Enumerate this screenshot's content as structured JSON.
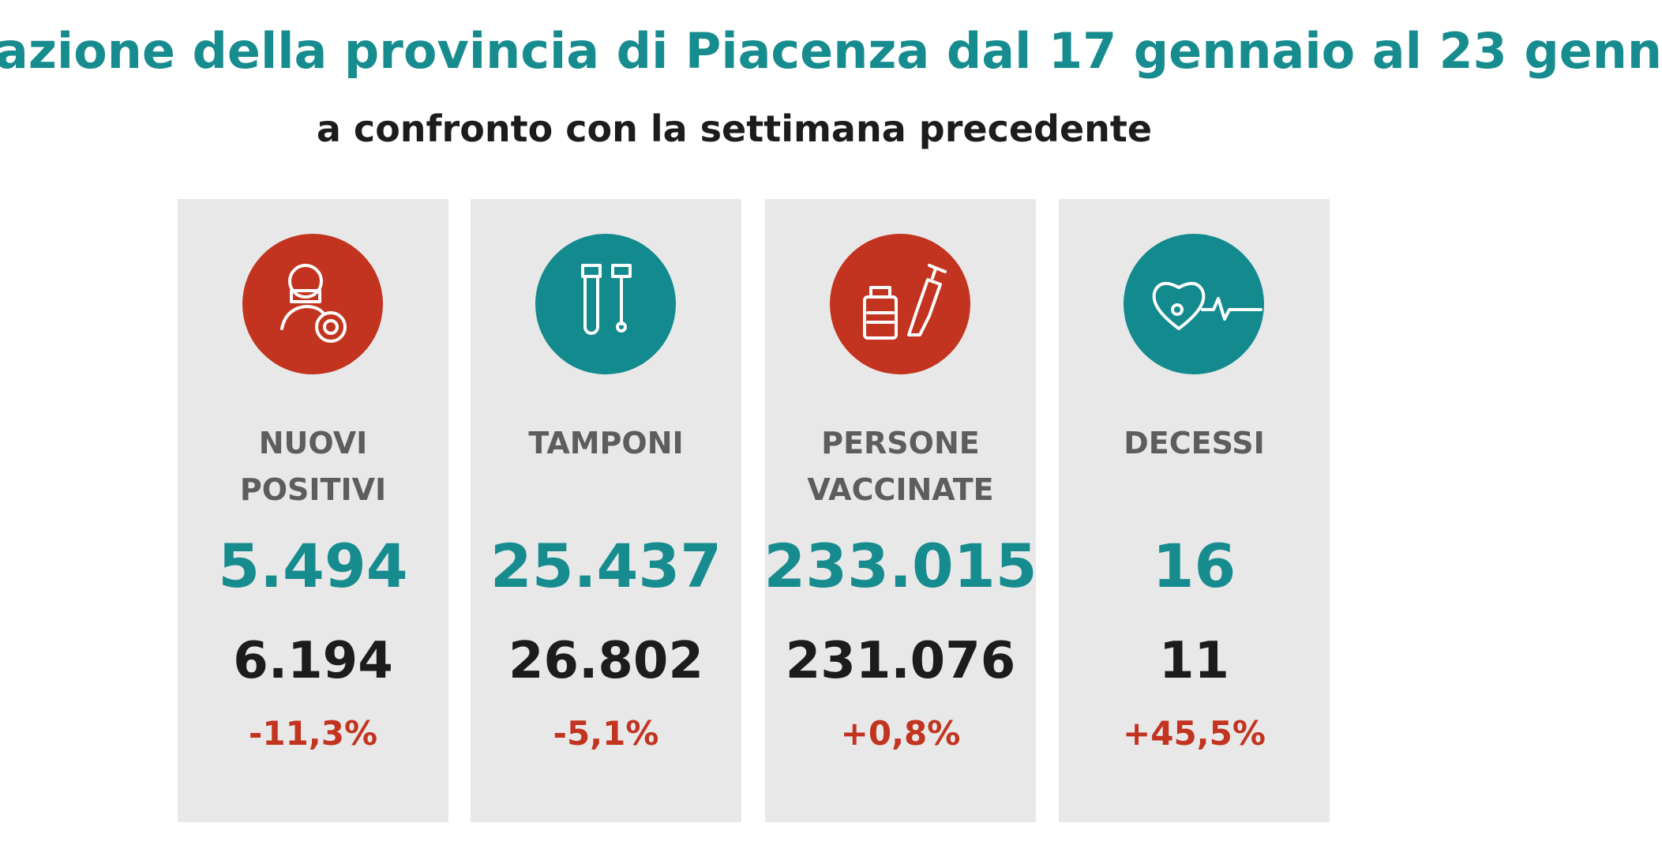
{
  "header": {
    "title": "azione della provincia di Piacenza dal 17 gennaio al 23 genn",
    "subtitle": "a confronto con la settimana precedente"
  },
  "cards": [
    {
      "label": [
        "NUOVI",
        "POSITIVI"
      ],
      "current": "5.494",
      "previous": "6.194",
      "change": "-11,3%"
    },
    {
      "label": [
        "TAMPONI"
      ],
      "current": "25.437",
      "previous": "26.802",
      "change": "-5,1%"
    },
    {
      "label": [
        "PERSONE",
        "VACCINATE"
      ],
      "current": "233.015",
      "previous": "231.076",
      "change": "+0,8%"
    },
    {
      "label": [
        "DECESSI"
      ],
      "current": "16",
      "previous": "11",
      "change": "+45,5%"
    }
  ]
}
